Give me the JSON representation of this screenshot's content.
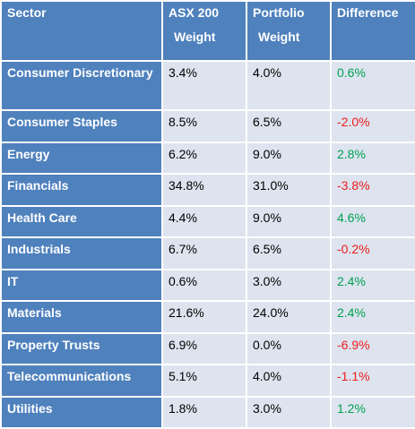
{
  "headers": {
    "sector": "Sector",
    "asx_line1": "ASX 200",
    "asx_line2": "Weight",
    "port_line1": "Portfolio",
    "port_line2": "Weight",
    "difference": "Difference"
  },
  "rows": [
    {
      "sector": "Consumer Discretionary",
      "asx": "3.4%",
      "portfolio": "4.0%",
      "difference": "0.6%",
      "sign": "pos"
    },
    {
      "sector": "Consumer Staples",
      "asx": "8.5%",
      "portfolio": "6.5%",
      "difference": "-2.0%",
      "sign": "neg"
    },
    {
      "sector": "Energy",
      "asx": "6.2%",
      "portfolio": "9.0%",
      "difference": "2.8%",
      "sign": "pos"
    },
    {
      "sector": "Financials",
      "asx": "34.8%",
      "portfolio": "31.0%",
      "difference": "-3.8%",
      "sign": "neg"
    },
    {
      "sector": "Health Care",
      "asx": "4.4%",
      "portfolio": "9.0%",
      "difference": "4.6%",
      "sign": "pos"
    },
    {
      "sector": "Industrials",
      "asx": "6.7%",
      "portfolio": "6.5%",
      "difference": "-0.2%",
      "sign": "neg"
    },
    {
      "sector": "IT",
      "asx": "0.6%",
      "portfolio": "3.0%",
      "difference": "2.4%",
      "sign": "pos"
    },
    {
      "sector": "Materials",
      "asx": "21.6%",
      "portfolio": "24.0%",
      "difference": "2.4%",
      "sign": "pos"
    },
    {
      "sector": "Property Trusts",
      "asx": "6.9%",
      "portfolio": "0.0%",
      "difference": "-6.9%",
      "sign": "neg"
    },
    {
      "sector": "Telecommunications",
      "asx": "5.1%",
      "portfolio": "4.0%",
      "difference": "-1.1%",
      "sign": "neg"
    },
    {
      "sector": "Utilities",
      "asx": "1.8%",
      "portfolio": "3.0%",
      "difference": "1.2%",
      "sign": "pos"
    }
  ],
  "colors": {
    "header_bg": "#4f81bd",
    "cell_bg": "#dde4ef",
    "positive": "#00a050",
    "negative": "#ee1c1c"
  }
}
